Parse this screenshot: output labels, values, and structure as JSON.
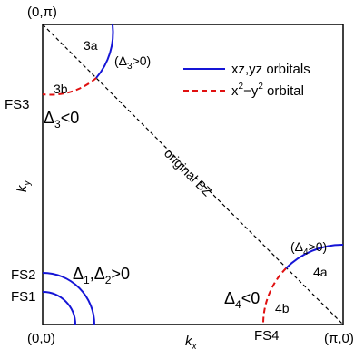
{
  "colors": {
    "orbital_xz_yz": "#1515d6",
    "orbital_x2y2": "#e01010",
    "frame": "#000000"
  },
  "corners": {
    "top_left": "(0,π)",
    "bottom_left": "(0,0)",
    "bottom_right": "(π,0)"
  },
  "axes": {
    "x_label": "k",
    "x_sub": "x",
    "y_label": "k",
    "y_sub": "y"
  },
  "diagonal_label": "original BZ",
  "legend": [
    {
      "text": "xz,yz orbitals",
      "style": "solid",
      "color": "#1515d6"
    },
    {
      "text": "x",
      "sup": "2",
      "mid": "−y",
      "sup2": "2",
      "tail": " orbital",
      "style": "dashed",
      "color": "#e01010"
    }
  ],
  "fermi_surfaces": {
    "fs1": {
      "label": "FS1"
    },
    "fs2": {
      "label": "FS2"
    },
    "fs3": {
      "label": "FS3"
    },
    "fs4": {
      "label": "FS4"
    }
  },
  "region_labels": {
    "r3a": "3a",
    "r3b": "3b",
    "r4a": "4a",
    "r4b": "4b"
  },
  "gap_labels": {
    "d3_pos": {
      "open": "(Δ",
      "sub": "3",
      "close": ">0)"
    },
    "d3_neg": {
      "open": "Δ",
      "sub": "3",
      "close": "<0"
    },
    "d4_pos": {
      "open": "(Δ",
      "sub": "4",
      "close": ">0)"
    },
    "d4_neg": {
      "open": "Δ",
      "sub": "4",
      "close": "<0"
    },
    "d12": {
      "a": "Δ",
      "a_sub": "1",
      "mid": ",Δ",
      "b_sub": "2",
      "close": ">0"
    }
  }
}
